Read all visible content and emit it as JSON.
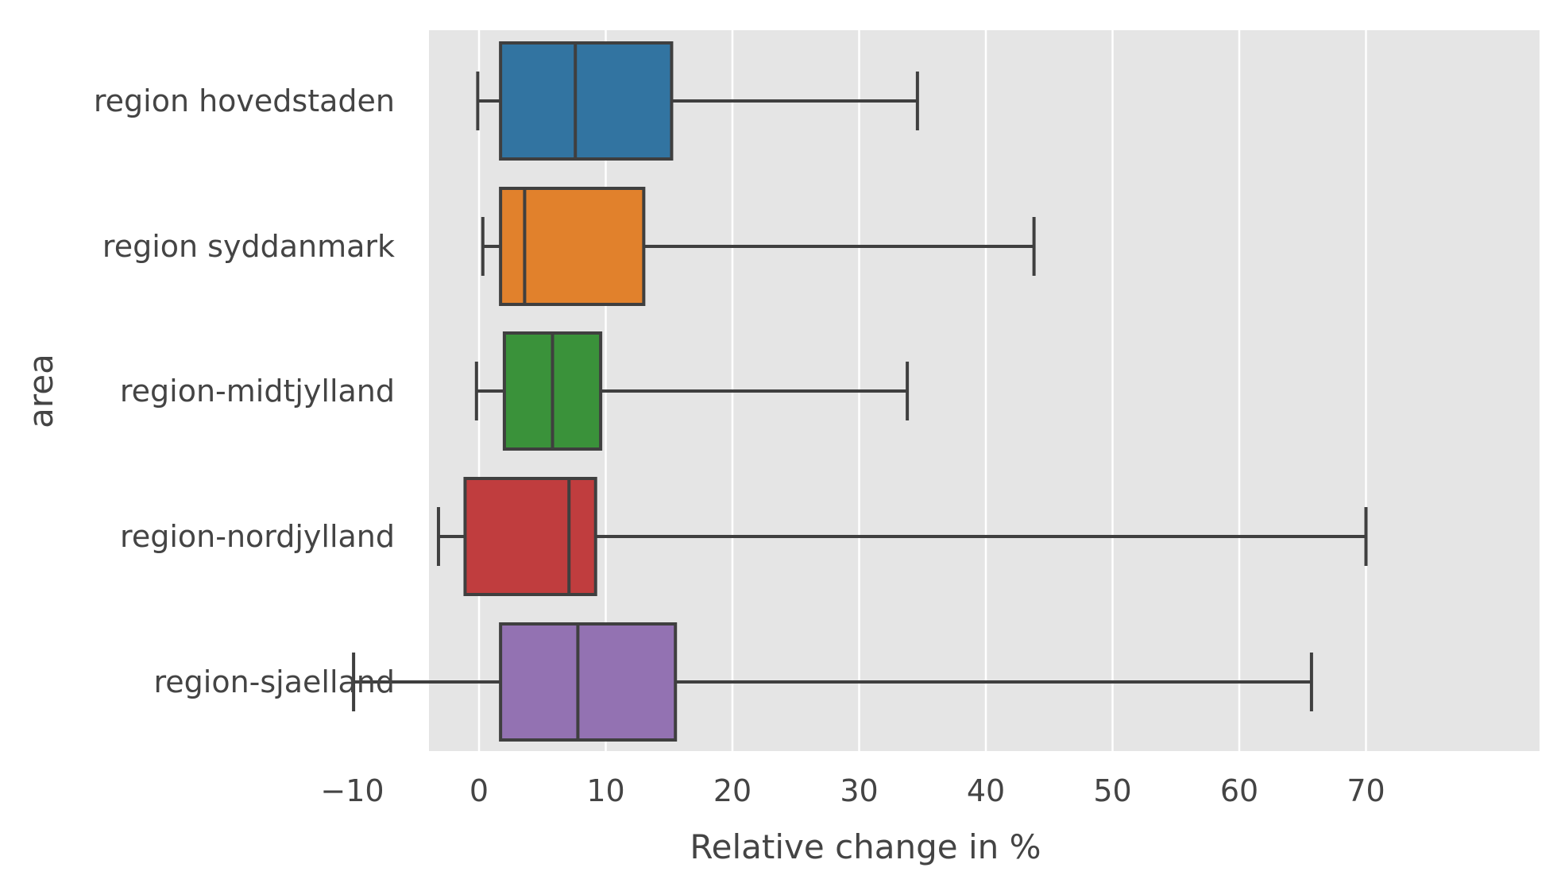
{
  "chart_data": {
    "type": "box",
    "orientation": "horizontal",
    "xlabel": "Relative change in %",
    "ylabel": "area",
    "xlim": [
      -14,
      74
    ],
    "xticks": [
      -10,
      0,
      10,
      20,
      30,
      40,
      50,
      60,
      70
    ],
    "xtick_labels": [
      "−10",
      "0",
      "10",
      "20",
      "30",
      "40",
      "50",
      "60",
      "70"
    ],
    "grid": "vertical",
    "background": "#e5e5e5",
    "series": [
      {
        "name": "region hovedstaden",
        "whisker_low": -0.1,
        "q1": 1.7,
        "median": 7.6,
        "q3": 15.2,
        "whisker_high": 34.6,
        "color": "#3274a1"
      },
      {
        "name": "region syddanmark",
        "whisker_low": 0.3,
        "q1": 1.7,
        "median": 3.6,
        "q3": 13.0,
        "whisker_high": 43.8,
        "color": "#e1812c"
      },
      {
        "name": "region-midtjylland",
        "whisker_low": -0.2,
        "q1": 2.0,
        "median": 5.8,
        "q3": 9.6,
        "whisker_high": 33.8,
        "color": "#3a923a"
      },
      {
        "name": "region-nordjylland",
        "whisker_low": -3.2,
        "q1": -1.1,
        "median": 7.1,
        "q3": 9.2,
        "whisker_high": 70.0,
        "color": "#c03d3e"
      },
      {
        "name": "region-sjaelland",
        "whisker_low": -9.9,
        "q1": 1.7,
        "median": 7.8,
        "q3": 15.5,
        "whisker_high": 65.7,
        "color": "#9372b2"
      }
    ]
  }
}
